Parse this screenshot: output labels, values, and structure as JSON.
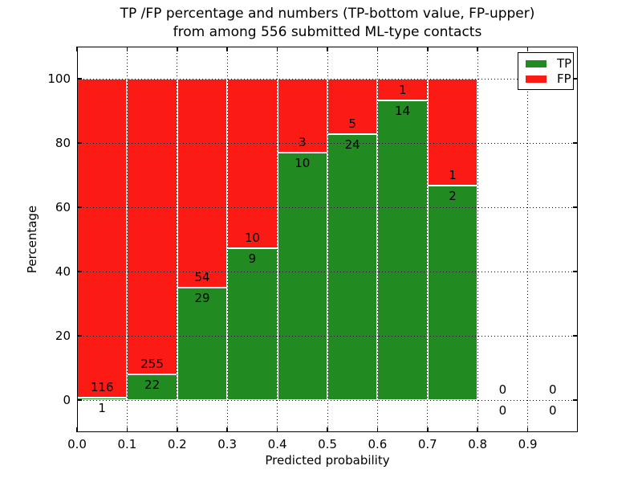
{
  "title": {
    "line1": "TP /FP percentage and numbers (TP-bottom value, FP-upper)",
    "line2": "from among 556 submitted ML-type contacts"
  },
  "chart_data": {
    "type": "bar",
    "stacked": true,
    "title": "TP /FP percentage and numbers (TP-bottom value, FP-upper)\nfrom among 556 submitted ML-type contacts",
    "total_contacts": 556,
    "xlabel": "Predicted probability",
    "ylabel": "Percentage",
    "xlim": [
      0.0,
      1.0
    ],
    "ylim": [
      -10,
      110
    ],
    "grid": true,
    "bin_width": 0.1,
    "bin_starts": [
      0.0,
      0.1,
      0.2,
      0.3,
      0.4,
      0.5,
      0.6,
      0.7,
      0.8,
      0.9
    ],
    "xtick_values": [
      0.0,
      0.1,
      0.2,
      0.3,
      0.4,
      0.5,
      0.6,
      0.7,
      0.8,
      0.9
    ],
    "xtick_labels": [
      "0.0",
      "0.1",
      "0.2",
      "0.3",
      "0.4",
      "0.5",
      "0.6",
      "0.7",
      "0.8",
      "0.9"
    ],
    "ytick_values": [
      0,
      20,
      40,
      60,
      80,
      100
    ],
    "ytick_labels": [
      "0",
      "20",
      "40",
      "60",
      "80",
      "100"
    ],
    "series": [
      {
        "name": "TP",
        "color": "#218b21",
        "counts": [
          1,
          22,
          29,
          9,
          10,
          24,
          14,
          2,
          0,
          0
        ]
      },
      {
        "name": "FP",
        "color": "#fc1a15",
        "counts": [
          116,
          255,
          54,
          10,
          3,
          5,
          1,
          1,
          0,
          0
        ]
      }
    ],
    "tp_percent_by_bin": [
      0.85,
      7.94,
      34.94,
      47.37,
      76.92,
      82.76,
      93.33,
      66.67,
      null,
      null
    ],
    "legend": {
      "position": "upper right",
      "entries": [
        {
          "label": "TP",
          "color": "#218b21"
        },
        {
          "label": "FP",
          "color": "#fc1a15"
        }
      ]
    },
    "colors": {
      "tp": "#218b21",
      "fp": "#fc1a15",
      "grid": "#000000",
      "background": "#ffffff"
    }
  }
}
